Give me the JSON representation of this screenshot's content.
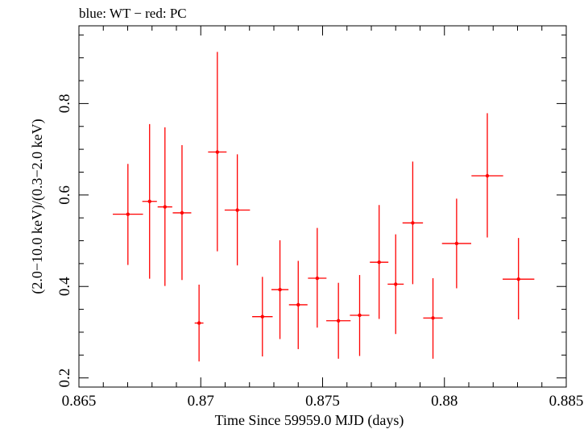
{
  "chart_data": {
    "type": "scatter",
    "title": "blue: WT − red: PC",
    "xlabel": "Time Since 59959.0 MJD (days)",
    "ylabel": "(2.0−10.0 keV)/(0.3−2.0 keV)",
    "xlim": [
      0.865,
      0.885
    ],
    "ylim": [
      0.18,
      0.97
    ],
    "x_ticks": [
      0.865,
      0.87,
      0.875,
      0.88,
      0.885
    ],
    "x_tick_labels": [
      "0.865",
      "0.87",
      "0.875",
      "0.88",
      "0.885"
    ],
    "y_ticks": [
      0.2,
      0.4,
      0.6,
      0.8
    ],
    "y_tick_labels": [
      "0.2",
      "0.4",
      "0.6",
      "0.8"
    ],
    "grid": false,
    "series": [
      {
        "name": "PC",
        "color": "#ff0000",
        "points": [
          {
            "x": 0.86701,
            "xerr": 0.00062,
            "y": 0.558,
            "ylo": 0.447,
            "yhi": 0.668
          },
          {
            "x": 0.8679,
            "xerr": 0.0003,
            "y": 0.586,
            "ylo": 0.417,
            "yhi": 0.755
          },
          {
            "x": 0.86853,
            "xerr": 0.0003,
            "y": 0.574,
            "ylo": 0.401,
            "yhi": 0.748
          },
          {
            "x": 0.86923,
            "xerr": 0.00038,
            "y": 0.561,
            "ylo": 0.414,
            "yhi": 0.709
          },
          {
            "x": 0.86993,
            "xerr": 0.00018,
            "y": 0.32,
            "ylo": 0.236,
            "yhi": 0.404
          },
          {
            "x": 0.87068,
            "xerr": 0.00038,
            "y": 0.694,
            "ylo": 0.477,
            "yhi": 0.913
          },
          {
            "x": 0.8715,
            "xerr": 0.00052,
            "y": 0.567,
            "ylo": 0.446,
            "yhi": 0.689
          },
          {
            "x": 0.87253,
            "xerr": 0.00042,
            "y": 0.334,
            "ylo": 0.247,
            "yhi": 0.421
          },
          {
            "x": 0.87325,
            "xerr": 0.00035,
            "y": 0.393,
            "ylo": 0.285,
            "yhi": 0.501
          },
          {
            "x": 0.874,
            "xerr": 0.00038,
            "y": 0.36,
            "ylo": 0.263,
            "yhi": 0.456
          },
          {
            "x": 0.87478,
            "xerr": 0.00038,
            "y": 0.418,
            "ylo": 0.31,
            "yhi": 0.528
          },
          {
            "x": 0.87565,
            "xerr": 0.0005,
            "y": 0.325,
            "ylo": 0.242,
            "yhi": 0.408
          },
          {
            "x": 0.87652,
            "xerr": 0.0004,
            "y": 0.337,
            "ylo": 0.248,
            "yhi": 0.425
          },
          {
            "x": 0.87732,
            "xerr": 0.00038,
            "y": 0.453,
            "ylo": 0.329,
            "yhi": 0.578
          },
          {
            "x": 0.878,
            "xerr": 0.00033,
            "y": 0.405,
            "ylo": 0.296,
            "yhi": 0.514
          },
          {
            "x": 0.8787,
            "xerr": 0.00042,
            "y": 0.539,
            "ylo": 0.405,
            "yhi": 0.673
          },
          {
            "x": 0.87953,
            "xerr": 0.0004,
            "y": 0.331,
            "ylo": 0.242,
            "yhi": 0.418
          },
          {
            "x": 0.8805,
            "xerr": 0.0006,
            "y": 0.494,
            "ylo": 0.396,
            "yhi": 0.592
          },
          {
            "x": 0.88176,
            "xerr": 0.00065,
            "y": 0.642,
            "ylo": 0.507,
            "yhi": 0.779
          },
          {
            "x": 0.88304,
            "xerr": 0.00065,
            "y": 0.416,
            "ylo": 0.328,
            "yhi": 0.506
          }
        ]
      }
    ]
  }
}
